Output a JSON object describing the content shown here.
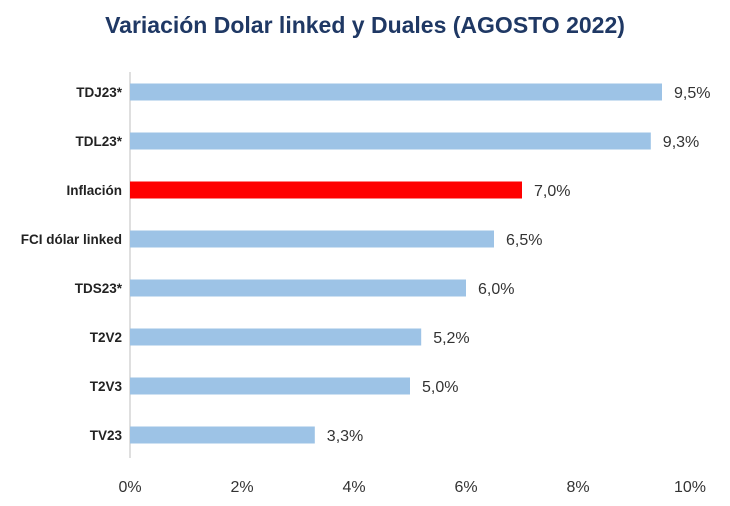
{
  "chart_data": {
    "type": "bar",
    "orientation": "horizontal",
    "title": "Variación Dolar linked y Duales (AGOSTO 2022)",
    "categories": [
      "TDJ23*",
      "TDL23*",
      "Inflación",
      "FCI dólar linked",
      "TDS23*",
      "T2V2",
      "T2V3",
      "TV23"
    ],
    "values": [
      9.5,
      9.3,
      7.0,
      6.5,
      6.0,
      5.2,
      5.0,
      3.3
    ],
    "value_labels": [
      "9,5%",
      "9,3%",
      "7,0%",
      "6,5%",
      "6,0%",
      "5,2%",
      "5,0%",
      "3,3%"
    ],
    "highlight_index": 2,
    "xlim": [
      0,
      10
    ],
    "xticks": [
      0,
      2,
      4,
      6,
      8,
      10
    ],
    "xtick_labels": [
      "0%",
      "2%",
      "4%",
      "6%",
      "8%",
      "10%"
    ],
    "xlabel": "",
    "ylabel": "",
    "grid": false,
    "colors": {
      "bar": "#9dc3e6",
      "highlight": "#ff0000",
      "axis": "#bfbfbf"
    }
  }
}
